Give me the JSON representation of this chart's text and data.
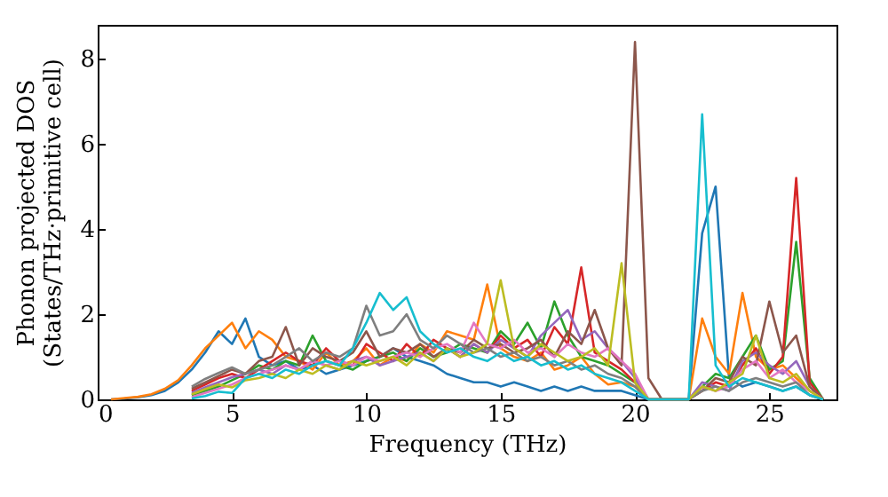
{
  "chart_data": {
    "type": "line",
    "xlabel": "Frequency (THz)",
    "ylabel": "Phonon projected DOS\n(States/THz·primitive cell)",
    "x": [
      0.5,
      1,
      1.5,
      2,
      2.5,
      3,
      3.5,
      4,
      4.5,
      5,
      5.5,
      6,
      6.5,
      7,
      7.5,
      8,
      8.5,
      9,
      9.5,
      10,
      10.5,
      11,
      11.5,
      12,
      12.5,
      13,
      13.5,
      14,
      14.5,
      15,
      15.5,
      16,
      16.5,
      17,
      17.5,
      18,
      18.5,
      19,
      19.5,
      20,
      20.5,
      21,
      21.5,
      22,
      22.5,
      23,
      23.5,
      24,
      24.5,
      25,
      25.5,
      26,
      26.5,
      27
    ],
    "xlim": [
      0,
      27.5
    ],
    "xticks": [
      0,
      5,
      10,
      15,
      20,
      25
    ],
    "ylim": [
      0,
      8.8
    ],
    "yticks": [
      0,
      2,
      4,
      6,
      8
    ],
    "grid": false,
    "legend": false,
    "line_style": "solid",
    "marker": "none",
    "series": [
      {
        "color": "#1f77b4",
        "values": [
          0,
          0.02,
          0.05,
          0.1,
          0.2,
          0.4,
          0.7,
          1.1,
          1.6,
          1.3,
          1.9,
          1.0,
          0.8,
          0.9,
          0.7,
          0.8,
          0.6,
          0.7,
          0.8,
          0.9,
          1.0,
          1.2,
          1.0,
          0.9,
          0.8,
          0.6,
          0.5,
          0.4,
          0.4,
          0.3,
          0.4,
          0.3,
          0.2,
          0.3,
          0.2,
          0.3,
          0.2,
          0.2,
          0.2,
          0.1,
          0,
          0,
          0,
          0,
          3.9,
          5.0,
          0.5,
          0.3,
          0.4,
          0.3,
          0.2,
          0.3,
          0.1,
          0
        ]
      },
      {
        "color": "#ff7f0e",
        "values": [
          0,
          0.03,
          0.06,
          0.12,
          0.25,
          0.45,
          0.8,
          1.2,
          1.5,
          1.8,
          1.2,
          1.6,
          1.4,
          1.0,
          0.9,
          0.7,
          1.1,
          0.8,
          0.9,
          1.2,
          0.8,
          1.0,
          0.9,
          1.3,
          1.1,
          1.6,
          1.5,
          1.4,
          2.7,
          1.2,
          1.0,
          0.9,
          1.1,
          0.7,
          0.8,
          1.0,
          0.6,
          0.35,
          0.4,
          0.3,
          0,
          0,
          0,
          0,
          1.9,
          1.0,
          0.6,
          2.5,
          1.0,
          0.7,
          0.8,
          0.5,
          0.2,
          0
        ]
      },
      {
        "color": "#2ca02c",
        "values": [
          null,
          null,
          null,
          null,
          null,
          null,
          0.1,
          0.2,
          0.3,
          0.45,
          0.6,
          0.8,
          0.7,
          0.9,
          0.8,
          1.5,
          0.9,
          0.8,
          0.7,
          0.9,
          1.0,
          1.1,
          0.9,
          1.2,
          1.0,
          1.1,
          1.3,
          1.2,
          1.1,
          1.6,
          1.3,
          1.8,
          1.2,
          2.3,
          1.5,
          1.0,
          0.9,
          0.8,
          0.6,
          0.4,
          0,
          0,
          0,
          0,
          0.3,
          0.6,
          0.5,
          1.0,
          1.5,
          0.7,
          0.9,
          3.7,
          0.5,
          0
        ]
      },
      {
        "color": "#d62728",
        "values": [
          null,
          null,
          null,
          null,
          null,
          null,
          0.2,
          0.35,
          0.5,
          0.6,
          0.5,
          0.7,
          0.9,
          1.1,
          0.9,
          0.8,
          1.2,
          0.9,
          0.8,
          1.3,
          1.1,
          0.9,
          1.3,
          1.0,
          1.4,
          1.2,
          1.0,
          1.3,
          1.1,
          1.5,
          1.2,
          1.4,
          1.0,
          1.7,
          1.3,
          3.1,
          1.1,
          0.9,
          0.7,
          0.4,
          0,
          0,
          0,
          0,
          0.2,
          0.4,
          0.3,
          0.8,
          1.2,
          0.6,
          1.0,
          5.2,
          0.4,
          0
        ]
      },
      {
        "color": "#9467bd",
        "values": [
          null,
          null,
          null,
          null,
          null,
          null,
          0.15,
          0.28,
          0.4,
          0.52,
          0.6,
          0.7,
          0.6,
          0.8,
          0.7,
          0.9,
          0.8,
          0.7,
          0.9,
          1.0,
          0.8,
          0.9,
          1.0,
          1.1,
          0.9,
          1.2,
          1.0,
          1.3,
          1.1,
          1.4,
          1.2,
          1.0,
          1.5,
          1.8,
          2.1,
          1.4,
          1.6,
          1.2,
          0.9,
          0.5,
          0,
          0,
          0,
          0,
          0.4,
          0.3,
          0.2,
          0.9,
          1.1,
          0.8,
          0.6,
          0.9,
          0.3,
          0
        ]
      },
      {
        "color": "#8c564b",
        "values": [
          null,
          null,
          null,
          null,
          null,
          null,
          0.25,
          0.4,
          0.55,
          0.7,
          0.6,
          0.9,
          1.0,
          1.7,
          0.8,
          1.2,
          1.0,
          0.9,
          1.1,
          1.6,
          1.0,
          1.2,
          1.1,
          1.3,
          1.0,
          1.2,
          1.1,
          1.4,
          1.2,
          1.3,
          1.1,
          1.2,
          1.4,
          1.0,
          1.6,
          1.3,
          2.1,
          1.2,
          0.8,
          8.4,
          0.5,
          0,
          0,
          0,
          0.2,
          0.5,
          0.4,
          1.0,
          0.8,
          2.3,
          1.1,
          1.5,
          0.3,
          0
        ]
      },
      {
        "color": "#e377c2",
        "values": [
          null,
          null,
          null,
          null,
          null,
          null,
          0.05,
          0.15,
          0.25,
          0.35,
          0.5,
          0.6,
          0.7,
          0.8,
          0.7,
          0.9,
          0.8,
          0.9,
          0.8,
          1.0,
          0.9,
          1.0,
          1.1,
          1.0,
          1.2,
          1.3,
          1.1,
          1.8,
          1.3,
          1.2,
          1.4,
          1.1,
          1.2,
          1.0,
          1.3,
          1.1,
          1.0,
          1.2,
          0.9,
          0.6,
          0,
          0,
          0,
          0,
          0.3,
          0.2,
          0.3,
          0.7,
          0.9,
          0.5,
          0.7,
          0.4,
          0.2,
          0
        ]
      },
      {
        "color": "#7f7f7f",
        "values": [
          null,
          null,
          null,
          null,
          null,
          null,
          0.3,
          0.48,
          0.62,
          0.75,
          0.6,
          0.7,
          0.8,
          1.0,
          1.2,
          0.9,
          1.1,
          1.0,
          1.2,
          2.2,
          1.5,
          1.6,
          2.0,
          1.4,
          1.2,
          1.5,
          1.3,
          1.1,
          1.2,
          1.0,
          1.1,
          0.9,
          1.0,
          0.8,
          0.9,
          0.7,
          0.8,
          0.6,
          0.5,
          0.3,
          0,
          0,
          0,
          0,
          0.2,
          0.3,
          0.2,
          0.4,
          0.5,
          0.4,
          0.3,
          0.4,
          0.1,
          0
        ]
      },
      {
        "color": "#bcbd22",
        "values": [
          null,
          null,
          null,
          null,
          null,
          null,
          0.12,
          0.24,
          0.35,
          0.28,
          0.45,
          0.5,
          0.6,
          0.5,
          0.7,
          0.6,
          0.8,
          0.7,
          0.9,
          0.8,
          0.9,
          1.0,
          0.8,
          1.1,
          0.9,
          1.2,
          1.0,
          1.1,
          1.3,
          2.8,
          1.2,
          1.0,
          1.3,
          1.1,
          0.9,
          1.0,
          1.2,
          0.8,
          3.2,
          0.4,
          0,
          0,
          0,
          0,
          0.3,
          0.2,
          0.4,
          0.6,
          1.5,
          0.5,
          0.4,
          0.6,
          0.2,
          0
        ]
      },
      {
        "color": "#17becf",
        "values": [
          null,
          null,
          null,
          null,
          null,
          null,
          0.02,
          0.08,
          0.18,
          0.15,
          0.5,
          0.6,
          0.5,
          0.7,
          0.6,
          0.8,
          0.9,
          0.8,
          1.2,
          1.8,
          2.5,
          2.1,
          2.4,
          1.6,
          1.3,
          1.1,
          1.2,
          1.0,
          0.9,
          1.1,
          0.9,
          1.0,
          0.8,
          0.9,
          0.7,
          0.8,
          0.6,
          0.5,
          0.4,
          0.2,
          0,
          0,
          0,
          0,
          6.7,
          0.8,
          0.3,
          0.5,
          0.4,
          0.3,
          0.2,
          0.3,
          0.1,
          0
        ]
      }
    ]
  }
}
